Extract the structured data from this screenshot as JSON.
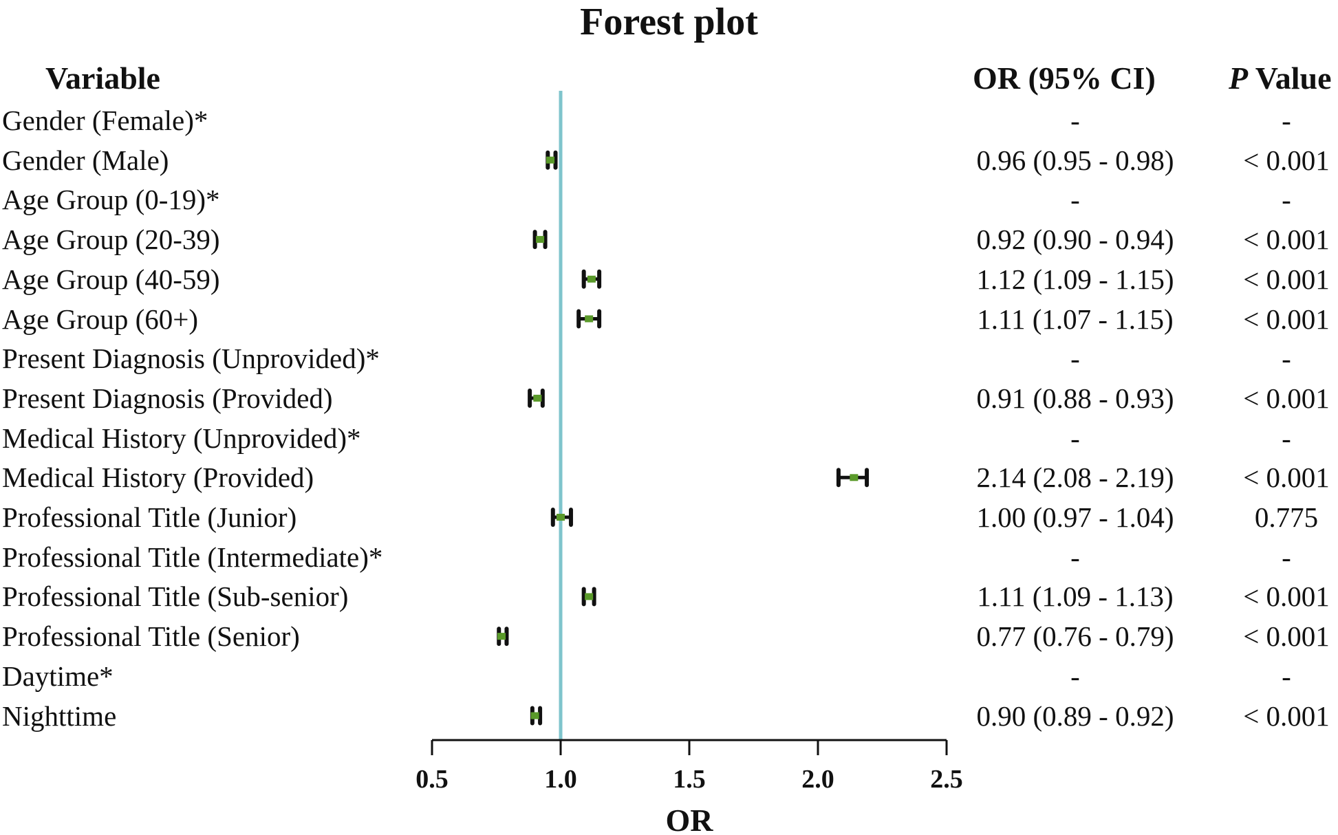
{
  "chart_data": {
    "type": "forest",
    "title": "Forest plot",
    "xlabel": "OR",
    "xlim": [
      0.5,
      2.5
    ],
    "xticks": [
      "0.5",
      "1.0",
      "1.5",
      "2.0",
      "2.5"
    ],
    "reference_line": 1.0,
    "reference_color": "#7fc4cc",
    "marker_color": "#5a9a2a",
    "whisker_color": "#111111",
    "headers": {
      "variable": "Variable",
      "or": "OR (95% CI)",
      "p_italic": "P",
      "p_rest": " Value"
    },
    "rows": [
      {
        "label": "Gender (Female)*",
        "or_text": "-",
        "p_text": "-",
        "or": null
      },
      {
        "label": "Gender (Male)",
        "or_text": "0.96 (0.95 - 0.98)",
        "p_text": "< 0.001",
        "or": 0.96,
        "lo": 0.95,
        "hi": 0.98
      },
      {
        "label": "Age Group (0-19)*",
        "or_text": "-",
        "p_text": "-",
        "or": null
      },
      {
        "label": "Age Group (20-39)",
        "or_text": "0.92 (0.90 - 0.94)",
        "p_text": "< 0.001",
        "or": 0.92,
        "lo": 0.9,
        "hi": 0.94
      },
      {
        "label": "Age Group (40-59)",
        "or_text": "1.12 (1.09 - 1.15)",
        "p_text": "< 0.001",
        "or": 1.12,
        "lo": 1.09,
        "hi": 1.15
      },
      {
        "label": "Age Group (60+)",
        "or_text": "1.11 (1.07 - 1.15)",
        "p_text": "< 0.001",
        "or": 1.11,
        "lo": 1.07,
        "hi": 1.15
      },
      {
        "label": "Present Diagnosis (Unprovided)*",
        "or_text": "-",
        "p_text": "-",
        "or": null
      },
      {
        "label": "Present Diagnosis (Provided)",
        "or_text": "0.91 (0.88 - 0.93)",
        "p_text": "< 0.001",
        "or": 0.91,
        "lo": 0.88,
        "hi": 0.93
      },
      {
        "label": "Medical History (Unprovided)*",
        "or_text": "-",
        "p_text": "-",
        "or": null
      },
      {
        "label": "Medical History (Provided)",
        "or_text": "2.14 (2.08 - 2.19)",
        "p_text": "< 0.001",
        "or": 2.14,
        "lo": 2.08,
        "hi": 2.19
      },
      {
        "label": "Professional Title (Junior)",
        "or_text": "1.00 (0.97 - 1.04)",
        "p_text": "0.775",
        "or": 1.0,
        "lo": 0.97,
        "hi": 1.04
      },
      {
        "label": "Professional Title (Intermediate)*",
        "or_text": "-",
        "p_text": "-",
        "or": null
      },
      {
        "label": "Professional Title (Sub-senior)",
        "or_text": "1.11 (1.09 - 1.13)",
        "p_text": "< 0.001",
        "or": 1.11,
        "lo": 1.09,
        "hi": 1.13
      },
      {
        "label": "Professional Title (Senior)",
        "or_text": "0.77 (0.76 - 0.79)",
        "p_text": "< 0.001",
        "or": 0.77,
        "lo": 0.76,
        "hi": 0.79
      },
      {
        "label": "Daytime*",
        "or_text": "-",
        "p_text": "-",
        "or": null
      },
      {
        "label": "Nighttime",
        "or_text": "0.90 (0.89 - 0.92)",
        "p_text": "< 0.001",
        "or": 0.9,
        "lo": 0.89,
        "hi": 0.92
      }
    ]
  }
}
